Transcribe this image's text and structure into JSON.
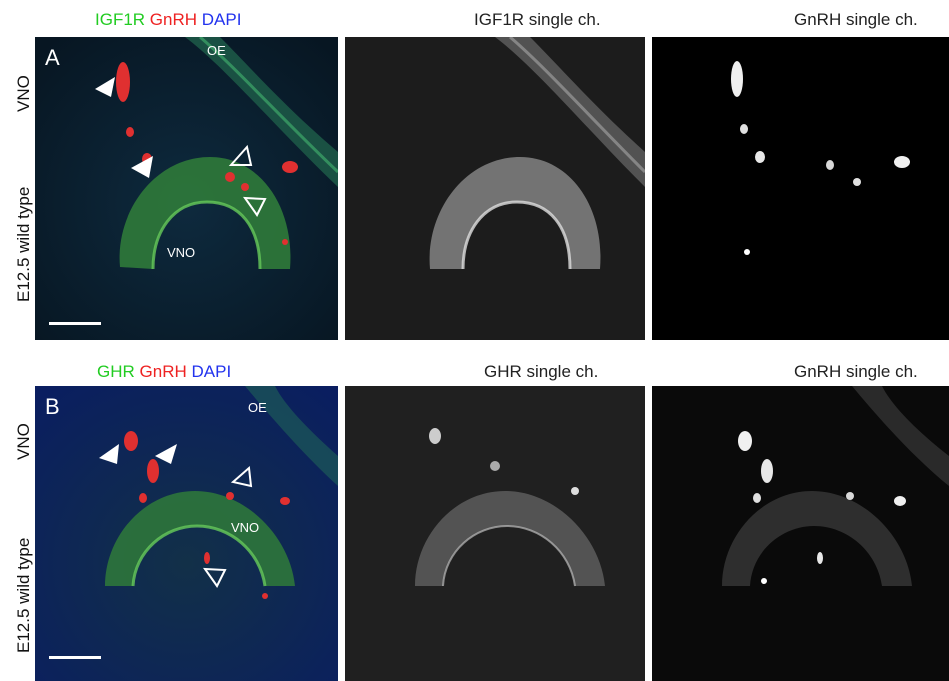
{
  "row_a": {
    "merge_title": {
      "ch1": {
        "text": "IGF1R",
        "color": "#22cc22"
      },
      "ch2": {
        "text": "GnRH",
        "color": "#ee2222"
      },
      "ch3": {
        "text": "DAPI",
        "color": "#2233ee"
      }
    },
    "single1_title": "IGF1R single ch.",
    "single2_title": "GnRH single ch.",
    "panel_letter": "A",
    "side_label_top": "VNO",
    "side_label_bottom": "E12.5 wild type",
    "annotation_oe": "OE",
    "annotation_vno": "VNO",
    "markers": {
      "filled_arrowheads": 2,
      "open_arrowheads": 2
    }
  },
  "row_b": {
    "merge_title": {
      "ch1": {
        "text": "GHR",
        "color": "#22cc22"
      },
      "ch2": {
        "text": "GnRH",
        "color": "#ee2222"
      },
      "ch3": {
        "text": "DAPI",
        "color": "#2233ee"
      }
    },
    "single1_title": "GHR single ch.",
    "single2_title": "GnRH single ch.",
    "panel_letter": "B",
    "side_label_top": "VNO",
    "side_label_bottom": "E12.5 wild type",
    "annotation_oe": "OE",
    "annotation_vno": "VNO",
    "markers": {
      "filled_arrowheads": 2,
      "open_arrowheads": 2
    }
  }
}
